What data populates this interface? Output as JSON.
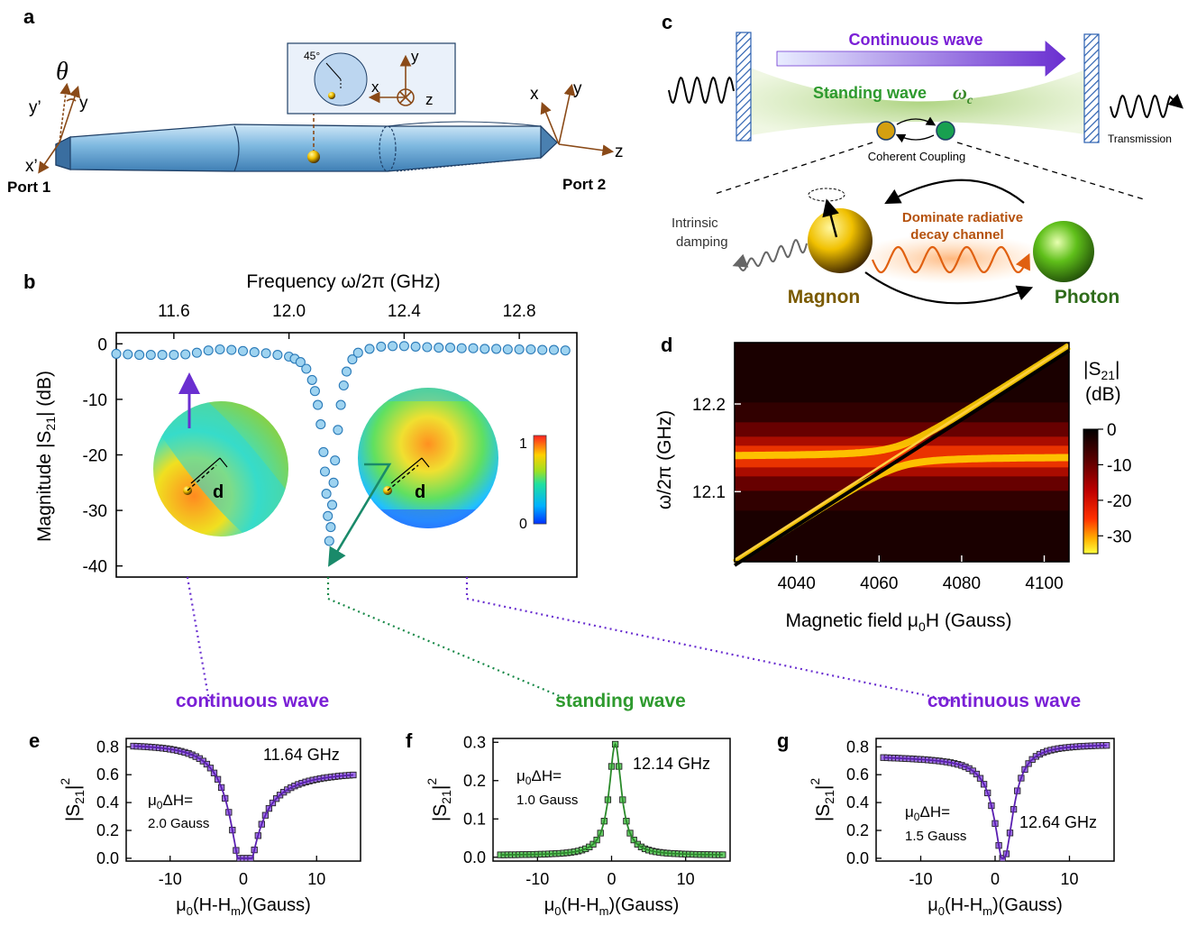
{
  "panel_labels": {
    "a": "a",
    "b": "b",
    "c": "c",
    "d": "d",
    "e": "e",
    "f": "f",
    "g": "g"
  },
  "panel_a": {
    "theta": "θ",
    "axes_port1": {
      "y_prime": "y’",
      "y": "y",
      "x_prime": "x’"
    },
    "axes_port2": {
      "x": "x",
      "y": "y",
      "z": "z"
    },
    "inset": {
      "angle": "45°",
      "x": "x",
      "y": "y",
      "z": "z"
    },
    "port1": "Port 1",
    "port2": "Port 2"
  },
  "panel_b": {
    "top_axis_label": "Frequency ω/2π (GHz)",
    "ylabel": "Magnitude |S",
    "ylabel_sub": "21",
    "ylabel_end": "| (dB)",
    "inset_label_left": "d",
    "inset_label_right": "d",
    "colorbar_max": "1",
    "colorbar_min": "0"
  },
  "panel_c": {
    "continuous_wave": "Continuous wave",
    "standing_wave": "Standing wave",
    "omega_c": "ω",
    "omega_c_sub": "c",
    "coherent_coupling": "Coherent Coupling",
    "transmission": "Transmission",
    "intrinsic_damping_1": "Intrinsic",
    "intrinsic_damping_2": "damping",
    "radiative_1": "Dominate radiative",
    "radiative_2": "decay channel",
    "magnon": "Magnon",
    "photon": "Photon"
  },
  "panel_d": {
    "ylabel": "ω/2π (GHz)",
    "xlabel": "Magnetic field μ",
    "xlabel_sub": "0",
    "xlabel_end": "H (Gauss)",
    "colorbar_title_1": "|S",
    "colorbar_title_sub": "21",
    "colorbar_title_2": "|",
    "colorbar_title_3": "(dB)",
    "colorbar_ticks": [
      "0",
      "-10",
      "-20",
      "-30"
    ]
  },
  "panel_e": {
    "title": "continuous wave",
    "freq": "11.64 GHz",
    "lw_1": "μ",
    "lw_sub": "0",
    "lw_2": "ΔH=",
    "lw_value": "2.0 Gauss",
    "title_color": "#7a1fd6"
  },
  "panel_f": {
    "title": "standing wave",
    "freq": "12.14 GHz",
    "lw_1": "μ",
    "lw_sub": "0",
    "lw_2": "ΔH=",
    "lw_value": "1.0 Gauss",
    "title_color": "#2e9a2e"
  },
  "panel_g": {
    "title": "continuous wave",
    "freq": "12.64 GHz",
    "lw_1": "μ",
    "lw_sub": "0",
    "lw_2": "ΔH=",
    "lw_value": "1.5 Gauss",
    "title_color": "#7a1fd6"
  },
  "bottom_axes": {
    "ylabel_1": "|S",
    "ylabel_sub": "21",
    "ylabel_2": "|",
    "ylabel_sup": "2",
    "xlabel_1": "μ",
    "xlabel_sub0": "0",
    "xlabel_2": "(H-H",
    "xlabel_subm": "m",
    "xlabel_3": ")(Gauss)"
  },
  "colors": {
    "purple": "#7a1fd6",
    "green": "#2e9a2e",
    "magnon_text": "#7a5a00",
    "photon_text": "#2e6b1a",
    "orange_text": "#b5510c"
  },
  "chart_data": [
    {
      "id": "b",
      "type": "line",
      "x_label": "Frequency ω/2π (GHz)",
      "y_label": "Magnitude |S21| (dB)",
      "xlim": [
        11.4,
        13.0
      ],
      "ylim": [
        -42,
        2
      ],
      "x_ticks": [
        11.6,
        12.0,
        12.4,
        12.8
      ],
      "y_ticks": [
        0,
        -10,
        -20,
        -30,
        -40
      ],
      "resonance": {
        "f0": 12.14,
        "depth_db": -38,
        "width_ghz": 0.018
      },
      "series": [
        {
          "kind": "markers",
          "points": [
            [
              11.4,
              -1.8
            ],
            [
              11.44,
              -1.9
            ],
            [
              11.48,
              -2.0
            ],
            [
              11.52,
              -2.0
            ],
            [
              11.56,
              -2.0
            ],
            [
              11.6,
              -2.0
            ],
            [
              11.64,
              -1.9
            ],
            [
              11.68,
              -1.6
            ],
            [
              11.72,
              -1.2
            ],
            [
              11.76,
              -1.0
            ],
            [
              11.8,
              -1.1
            ],
            [
              11.84,
              -1.3
            ],
            [
              11.88,
              -1.5
            ],
            [
              11.92,
              -1.7
            ],
            [
              11.96,
              -2.0
            ],
            [
              12.0,
              -2.3
            ],
            [
              12.02,
              -2.7
            ],
            [
              12.04,
              -3.3
            ],
            [
              12.06,
              -4.5
            ],
            [
              12.08,
              -6.5
            ],
            [
              12.09,
              -8.5
            ],
            [
              12.1,
              -11.0
            ],
            [
              12.11,
              -14.5
            ],
            [
              12.12,
              -19.5
            ],
            [
              12.125,
              -23.0
            ],
            [
              12.13,
              -27.0
            ],
            [
              12.135,
              -31.0
            ],
            [
              12.14,
              -35.5
            ],
            [
              12.145,
              -33.0
            ],
            [
              12.15,
              -29.0
            ],
            [
              12.155,
              -25.0
            ],
            [
              12.16,
              -21.0
            ],
            [
              12.17,
              -15.5
            ],
            [
              12.18,
              -11.0
            ],
            [
              12.19,
              -7.5
            ],
            [
              12.2,
              -5.0
            ],
            [
              12.22,
              -2.8
            ],
            [
              12.24,
              -1.6
            ],
            [
              12.28,
              -0.9
            ],
            [
              12.32,
              -0.5
            ],
            [
              12.36,
              -0.4
            ],
            [
              12.4,
              -0.4
            ],
            [
              12.44,
              -0.5
            ],
            [
              12.48,
              -0.6
            ],
            [
              12.52,
              -0.7
            ],
            [
              12.56,
              -0.7
            ],
            [
              12.6,
              -0.8
            ],
            [
              12.64,
              -0.8
            ],
            [
              12.68,
              -0.9
            ],
            [
              12.72,
              -0.9
            ],
            [
              12.76,
              -1.0
            ],
            [
              12.8,
              -1.0
            ],
            [
              12.84,
              -1.0
            ],
            [
              12.88,
              -1.1
            ],
            [
              12.92,
              -1.1
            ],
            [
              12.96,
              -1.2
            ]
          ]
        },
        {
          "kind": "fit",
          "baseline_db": -0.6
        }
      ]
    },
    {
      "id": "d",
      "type": "heatmap",
      "x_label": "Magnetic field μ0H (Gauss)",
      "y_label": "ω/2π (GHz)",
      "xlim": [
        4025,
        4106
      ],
      "ylim": [
        12.02,
        12.27
      ],
      "x_ticks": [
        4040,
        4060,
        4080,
        4100
      ],
      "y_ticks": [
        12.1,
        12.2
      ],
      "colorbar": {
        "label": "|S21| (dB)",
        "range": [
          -35,
          0
        ],
        "ticks": [
          0,
          -10,
          -20,
          -30
        ]
      },
      "cavity_mode_ghz": 12.14,
      "magnon_line": {
        "from": [
          4025,
          12.02
        ],
        "to": [
          4106,
          12.265
        ]
      }
    },
    {
      "id": "e",
      "type": "line",
      "title": "continuous wave",
      "annotation": "11.64 GHz",
      "x_label": "μ0(H-Hm)(Gauss)",
      "y_label": "|S21|^2",
      "xlim": [
        -16,
        16
      ],
      "ylim": [
        -0.02,
        0.86
      ],
      "x_ticks": [
        -10,
        0,
        10
      ],
      "y_ticks": [
        0.0,
        0.2,
        0.4,
        0.6,
        0.8
      ],
      "model": {
        "kind": "fano",
        "baseline": 0.62,
        "offset_left": 0.2,
        "center": 0,
        "width": 2.0,
        "dip": 0.62
      }
    },
    {
      "id": "f",
      "type": "line",
      "title": "standing wave",
      "annotation": "12.14 GHz",
      "x_label": "μ0(H-Hm)(Gauss)",
      "y_label": "|S21|^2",
      "xlim": [
        -16,
        16
      ],
      "ylim": [
        -0.01,
        0.31
      ],
      "x_ticks": [
        -10,
        0,
        10
      ],
      "y_ticks": [
        0.0,
        0.1,
        0.2,
        0.3
      ],
      "model": {
        "kind": "lorentz_peak",
        "center": 0.5,
        "width": 1.0,
        "peak": 0.295,
        "baseline": 0.005
      }
    },
    {
      "id": "g",
      "type": "line",
      "title": "continuous wave",
      "annotation": "12.64 GHz",
      "x_label": "μ0(H-Hm)(Gauss)",
      "y_label": "|S21|^2",
      "xlim": [
        -16,
        16
      ],
      "ylim": [
        -0.02,
        0.86
      ],
      "x_ticks": [
        -10,
        0,
        10
      ],
      "y_ticks": [
        0.0,
        0.2,
        0.4,
        0.6,
        0.8
      ],
      "model": {
        "kind": "fano_rev",
        "baseline": 0.82,
        "left": 0.73,
        "center": 1.2,
        "width": 1.5
      }
    }
  ]
}
